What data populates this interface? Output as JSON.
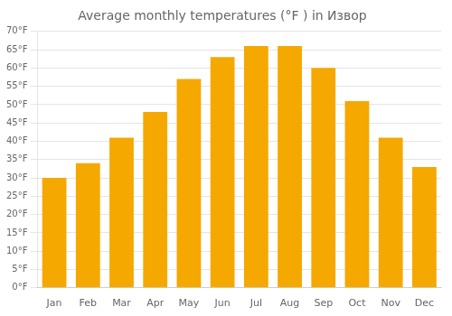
{
  "chart_data": {
    "type": "bar",
    "title": "Average monthly temperatures (°F ) in Извор",
    "categories": [
      "Jan",
      "Feb",
      "Mar",
      "Apr",
      "May",
      "Jun",
      "Jul",
      "Aug",
      "Sep",
      "Oct",
      "Nov",
      "Dec"
    ],
    "values": [
      30,
      34,
      41,
      48,
      57,
      63,
      66,
      66,
      60,
      51,
      41,
      33
    ],
    "color": "#F5A800",
    "ylim": [
      0,
      70
    ],
    "yticks": [
      {
        "value": 0,
        "label": "0°F"
      },
      {
        "value": 5,
        "label": "5°F"
      },
      {
        "value": 10,
        "label": "10°F"
      },
      {
        "value": 15,
        "label": "15°F"
      },
      {
        "value": 20,
        "label": "20°F"
      },
      {
        "value": 25,
        "label": "25°F"
      },
      {
        "value": 30,
        "label": "30°F"
      },
      {
        "value": 35,
        "label": "35°F"
      },
      {
        "value": 40,
        "label": "40°F"
      },
      {
        "value": 45,
        "label": "45°F"
      },
      {
        "value": 50,
        "label": "50°F"
      },
      {
        "value": 55,
        "label": "55°F"
      },
      {
        "value": 60,
        "label": "60°F"
      },
      {
        "value": 65,
        "label": "65°F"
      },
      {
        "value": 70,
        "label": "70°F"
      }
    ],
    "grid": true
  }
}
